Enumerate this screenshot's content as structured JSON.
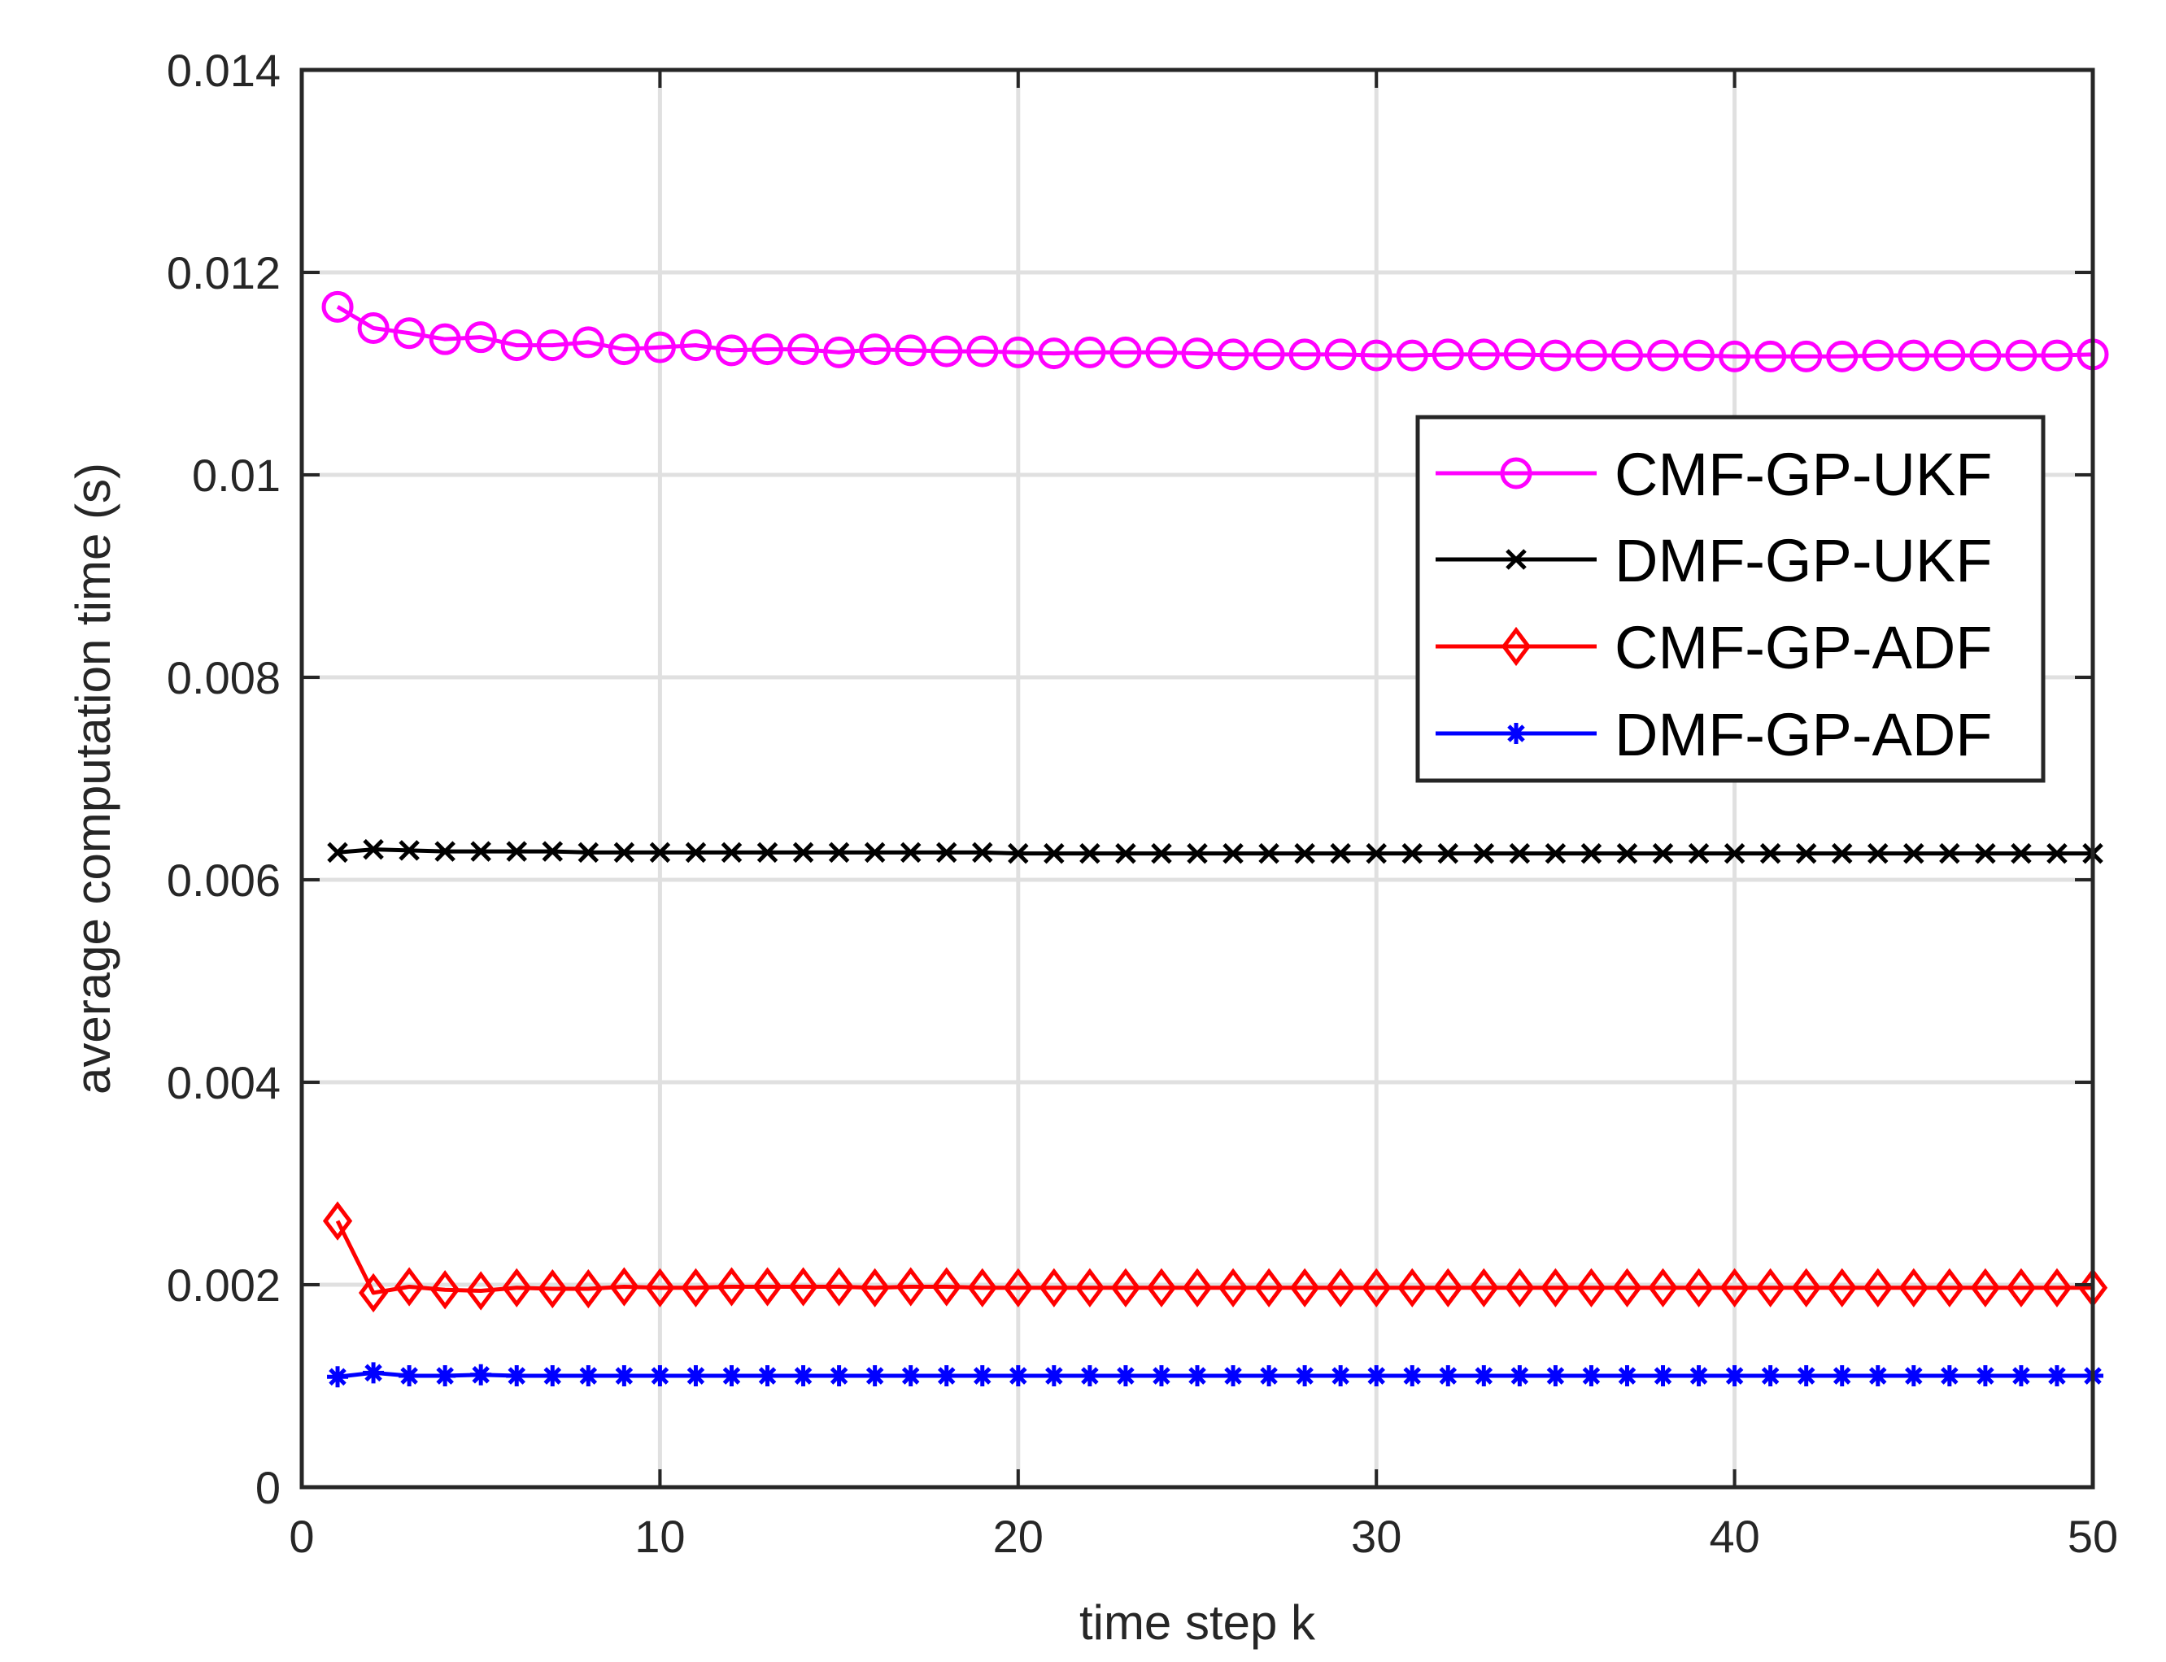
{
  "colors": {
    "grid": "#e0e0e0",
    "axis": "#262626",
    "background": "#ffffff"
  },
  "chart_data": {
    "type": "line",
    "title": "",
    "xlabel": "time step k",
    "ylabel": "average computation time (s)",
    "xlim": [
      0,
      50
    ],
    "ylim": [
      0,
      0.014
    ],
    "grid": true,
    "legend_position": "top-right",
    "x_ticks": [
      0,
      10,
      20,
      30,
      40,
      50
    ],
    "x_tick_labels": [
      "0",
      "10",
      "20",
      "30",
      "40",
      "50"
    ],
    "y_ticks": [
      0,
      0.002,
      0.004,
      0.006,
      0.008,
      0.01,
      0.012,
      0.014
    ],
    "y_tick_labels": [
      "0",
      "0.002",
      "0.004",
      "0.006",
      "0.008",
      "0.01",
      "0.012",
      "0.014"
    ],
    "x": [
      1,
      2,
      3,
      4,
      5,
      6,
      7,
      8,
      9,
      10,
      11,
      12,
      13,
      14,
      15,
      16,
      17,
      18,
      19,
      20,
      21,
      22,
      23,
      24,
      25,
      26,
      27,
      28,
      29,
      30,
      31,
      32,
      33,
      34,
      35,
      36,
      37,
      38,
      39,
      40,
      41,
      42,
      43,
      44,
      45,
      46,
      47,
      48,
      49,
      50
    ],
    "series": [
      {
        "name": "CMF-GP-UKF",
        "color": "#ff00ff",
        "marker": "circle",
        "values": [
          0.01166,
          0.01145,
          0.0114,
          0.01134,
          0.01136,
          0.01128,
          0.01128,
          0.01131,
          0.01124,
          0.01126,
          0.01128,
          0.01123,
          0.01124,
          0.01124,
          0.01121,
          0.01124,
          0.01123,
          0.01122,
          0.01122,
          0.01121,
          0.0112,
          0.01121,
          0.01121,
          0.01121,
          0.0112,
          0.01119,
          0.01119,
          0.01119,
          0.01119,
          0.01118,
          0.01118,
          0.01119,
          0.01119,
          0.01119,
          0.01118,
          0.01118,
          0.01118,
          0.01118,
          0.01118,
          0.01117,
          0.01117,
          0.01117,
          0.01117,
          0.01118,
          0.01118,
          0.01118,
          0.01118,
          0.01118,
          0.01118,
          0.01119
        ]
      },
      {
        "name": "DMF-GP-UKF",
        "color": "#000000",
        "marker": "x",
        "values": [
          0.00627,
          0.0063,
          0.00629,
          0.00628,
          0.00628,
          0.00628,
          0.00628,
          0.00627,
          0.00627,
          0.00627,
          0.00627,
          0.00627,
          0.00627,
          0.00627,
          0.00627,
          0.00627,
          0.00627,
          0.00627,
          0.00627,
          0.00626,
          0.00626,
          0.00626,
          0.00626,
          0.00626,
          0.00626,
          0.00626,
          0.00626,
          0.00626,
          0.00626,
          0.00626,
          0.00626,
          0.00626,
          0.00626,
          0.00626,
          0.00626,
          0.00626,
          0.00626,
          0.00626,
          0.00626,
          0.00626,
          0.00626,
          0.00626,
          0.00626,
          0.00626,
          0.00626,
          0.00626,
          0.00626,
          0.00626,
          0.00626,
          0.00626
        ]
      },
      {
        "name": "CMF-GP-ADF",
        "color": "#ff0000",
        "marker": "diamond",
        "values": [
          0.00263,
          0.00192,
          0.00198,
          0.00195,
          0.00194,
          0.00197,
          0.00196,
          0.00196,
          0.00198,
          0.00197,
          0.00197,
          0.00198,
          0.00198,
          0.00198,
          0.00198,
          0.00197,
          0.00198,
          0.00198,
          0.00197,
          0.00197,
          0.00197,
          0.00197,
          0.00197,
          0.00197,
          0.00197,
          0.00197,
          0.00197,
          0.00197,
          0.00197,
          0.00197,
          0.00197,
          0.00197,
          0.00197,
          0.00197,
          0.00197,
          0.00197,
          0.00197,
          0.00197,
          0.00197,
          0.00197,
          0.00197,
          0.00197,
          0.00197,
          0.00197,
          0.00197,
          0.00197,
          0.00197,
          0.00197,
          0.00197,
          0.00197
        ]
      },
      {
        "name": "DMF-GP-ADF",
        "color": "#0000ff",
        "marker": "asterisk",
        "values": [
          0.00109,
          0.00113,
          0.0011,
          0.0011,
          0.00111,
          0.0011,
          0.0011,
          0.0011,
          0.0011,
          0.0011,
          0.0011,
          0.0011,
          0.0011,
          0.0011,
          0.0011,
          0.0011,
          0.0011,
          0.0011,
          0.0011,
          0.0011,
          0.0011,
          0.0011,
          0.0011,
          0.0011,
          0.0011,
          0.0011,
          0.0011,
          0.0011,
          0.0011,
          0.0011,
          0.0011,
          0.0011,
          0.0011,
          0.0011,
          0.0011,
          0.0011,
          0.0011,
          0.0011,
          0.0011,
          0.0011,
          0.0011,
          0.0011,
          0.0011,
          0.0011,
          0.0011,
          0.0011,
          0.0011,
          0.0011,
          0.0011,
          0.0011
        ]
      }
    ]
  }
}
